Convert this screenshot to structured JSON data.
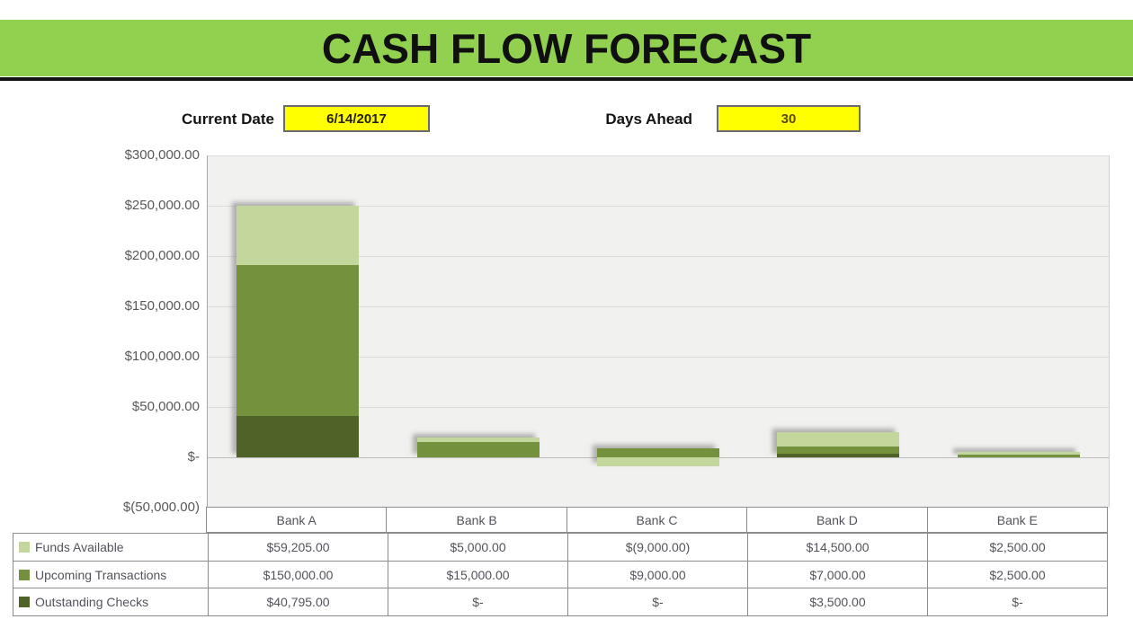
{
  "banner": {
    "title": "CASH FLOW FORECAST",
    "bg_color": "#92d050",
    "rule_color": "#141414"
  },
  "controls": {
    "current_date_label": "Current Date",
    "current_date_value": "6/14/2017",
    "days_ahead_label": "Days Ahead",
    "days_ahead_value": "30",
    "input_bg": "#ffff00"
  },
  "chart_data": {
    "type": "bar",
    "stacked": true,
    "title": "",
    "xlabel": "",
    "ylabel": "",
    "categories": [
      "Bank A",
      "Bank B",
      "Bank C",
      "Bank D",
      "Bank E"
    ],
    "series": [
      {
        "name": "Funds Available",
        "color": "#c3d69b",
        "values": [
          59205,
          5000,
          -9000,
          14500,
          2500
        ]
      },
      {
        "name": "Upcoming Transactions",
        "color": "#74923d",
        "values": [
          150000,
          15000,
          9000,
          7000,
          2500
        ]
      },
      {
        "name": "Outstanding Checks",
        "color": "#4f6228",
        "values": [
          40795,
          0,
          0,
          3500,
          0
        ]
      }
    ],
    "stack_order_bottom_to_top": [
      "Outstanding Checks",
      "Upcoming Transactions",
      "Funds Available"
    ],
    "ylim": [
      -50000,
      300000
    ],
    "y_tick_step": 50000,
    "y_ticks": [
      "$300,000.00",
      "$250,000.00",
      "$200,000.00",
      "$150,000.00",
      "$100,000.00",
      "$50,000.00",
      "$-",
      "$(50,000.00)"
    ],
    "grid": true,
    "plot_bg": "#f1f1ef",
    "legend_position": "table-row-headers"
  },
  "table": {
    "rows": [
      {
        "label": "Funds Available",
        "swatch": "#c3d69b",
        "values": [
          "$59,205.00",
          "$5,000.00",
          "$(9,000.00)",
          "$14,500.00",
          "$2,500.00"
        ]
      },
      {
        "label": "Upcoming Transactions",
        "swatch": "#74923d",
        "values": [
          "$150,000.00",
          "$15,000.00",
          "$9,000.00",
          "$7,000.00",
          "$2,500.00"
        ]
      },
      {
        "label": "Outstanding Checks",
        "swatch": "#4f6228",
        "values": [
          "$40,795.00",
          "$-",
          "$-",
          "$3,500.00",
          "$-"
        ]
      }
    ]
  }
}
